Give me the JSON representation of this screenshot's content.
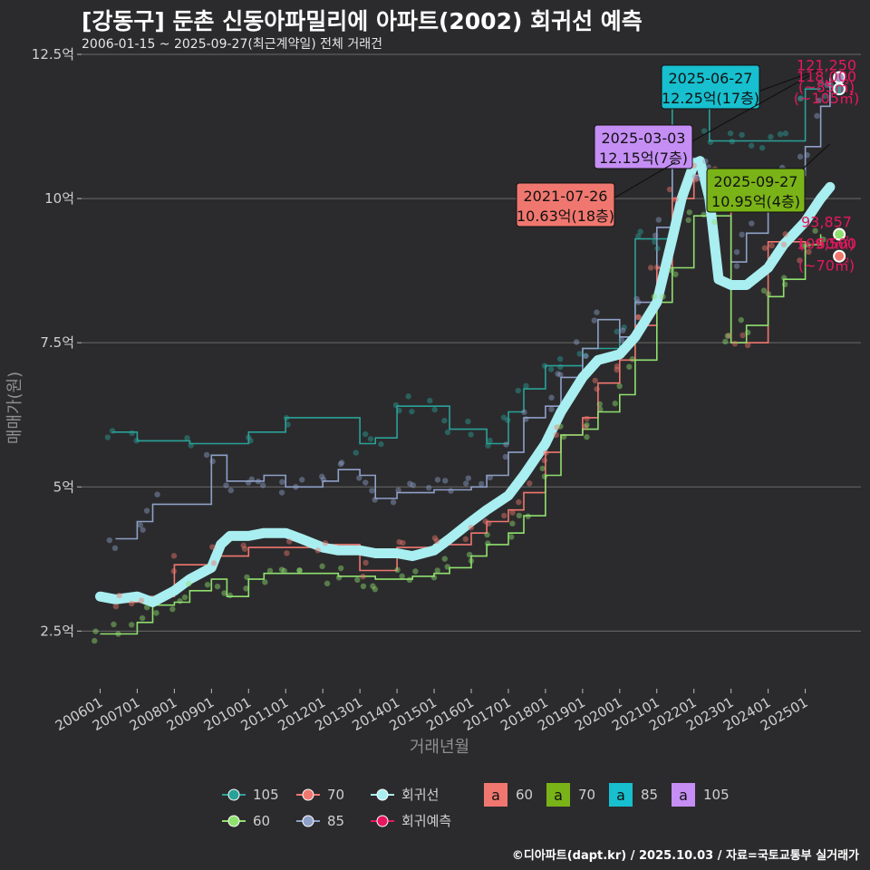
{
  "header": {
    "title": "[강동구] 둔촌 신동아파밀리에 아파트(2002) 회귀선 예측",
    "subtitle": "2006-01-15 ~ 2025-09-27(최근계약일) 전체 거래건"
  },
  "caption": "©디아파트(dapt.kr) / 2025.10.03 / 자료=국토교통부 실거래가",
  "chart_data": {
    "type": "line",
    "xlabel": "거래년월",
    "ylabel": "매매가(원)",
    "ylim": [
      1.5,
      12.5
    ],
    "xlim": [
      "2005-07",
      "2026-07"
    ],
    "y_ticks": [
      {
        "value": 2.5,
        "label": "2.5억"
      },
      {
        "value": 5,
        "label": "5억"
      },
      {
        "value": 7.5,
        "label": "7.5억"
      },
      {
        "value": 10,
        "label": "10억"
      },
      {
        "value": 12.5,
        "label": "12.5억"
      }
    ],
    "x_ticks": [
      "200601",
      "200701",
      "200801",
      "200901",
      "201001",
      "201101",
      "201201",
      "201301",
      "201401",
      "201501",
      "201601",
      "201701",
      "201801",
      "201901",
      "202001",
      "202101",
      "202201",
      "202301",
      "202401",
      "202501"
    ],
    "grid": true,
    "series": [
      {
        "name": "회귀선",
        "color": "#a9eef0",
        "x": [
          "2006-01",
          "2006-06",
          "2007-01",
          "2007-06",
          "2008-01",
          "2008-06",
          "2009-01",
          "2009-04",
          "2009-07",
          "2010-01",
          "2010-06",
          "2011-01",
          "2011-06",
          "2012-01",
          "2012-06",
          "2013-01",
          "2013-06",
          "2014-01",
          "2014-06",
          "2015-01",
          "2015-06",
          "2016-01",
          "2016-06",
          "2017-01",
          "2017-06",
          "2018-01",
          "2018-06",
          "2019-01",
          "2019-06",
          "2020-01",
          "2020-06",
          "2021-01",
          "2021-06",
          "2021-09",
          "2022-01",
          "2022-03",
          "2022-06",
          "2022-09",
          "2023-01",
          "2023-06",
          "2024-01",
          "2024-06",
          "2025-01",
          "2025-06",
          "2025-09"
        ],
        "values": [
          3.1,
          3.05,
          3.1,
          3.0,
          3.2,
          3.4,
          3.6,
          4.0,
          4.15,
          4.15,
          4.2,
          4.2,
          4.1,
          3.95,
          3.9,
          3.9,
          3.85,
          3.85,
          3.8,
          3.9,
          4.1,
          4.4,
          4.6,
          4.85,
          5.2,
          5.75,
          6.3,
          6.9,
          7.2,
          7.3,
          7.6,
          8.2,
          9.3,
          10.0,
          10.6,
          10.65,
          10.0,
          8.6,
          8.5,
          8.5,
          8.8,
          9.2,
          9.6,
          10.0,
          10.2
        ]
      },
      {
        "name": "105",
        "color": "#2aa198",
        "x": [
          "2006-05",
          "2007-01",
          "2008-06",
          "2010-01",
          "2011-01",
          "2013-01",
          "2013-06",
          "2014-01",
          "2014-06",
          "2015-01",
          "2015-06",
          "2016-01",
          "2016-06",
          "2017-01",
          "2017-06",
          "2018-01",
          "2018-06",
          "2019-01",
          "2020-01",
          "2020-06",
          "2021-01",
          "2021-06",
          "2022-01",
          "2022-06",
          "2023-01",
          "2023-06",
          "2024-01",
          "2024-06",
          "2025-01",
          "2025-06"
        ],
        "values": [
          5.95,
          5.8,
          5.75,
          5.95,
          6.2,
          5.75,
          5.85,
          6.4,
          6.4,
          6.4,
          6.0,
          6.0,
          5.75,
          6.3,
          6.7,
          7.1,
          7.1,
          7.4,
          7.6,
          9.3,
          9.3,
          12.0,
          12.0,
          11.0,
          11.0,
          11.0,
          11.0,
          11.0,
          11.9,
          11.9
        ]
      },
      {
        "name": "70",
        "color": "#f0776f",
        "x": [
          "2006-06",
          "2007-01",
          "2008-01",
          "2009-01",
          "2010-01",
          "2011-01",
          "2012-01",
          "2013-01",
          "2014-01",
          "2015-01",
          "2016-01",
          "2016-06",
          "2017-01",
          "2017-06",
          "2018-01",
          "2018-06",
          "2019-01",
          "2019-06",
          "2020-01",
          "2020-06",
          "2021-01",
          "2021-06",
          "2022-01",
          "2022-06",
          "2023-01",
          "2023-06",
          "2024-01",
          "2024-06",
          "2025-01"
        ],
        "values": [
          3.0,
          3.1,
          3.65,
          3.8,
          3.95,
          3.95,
          4.0,
          3.55,
          3.95,
          4.0,
          4.2,
          4.4,
          4.6,
          4.9,
          5.6,
          5.9,
          6.2,
          6.8,
          7.2,
          7.8,
          8.8,
          10.0,
          10.4,
          10.4,
          7.5,
          7.5,
          9.25,
          9.25,
          9.0
        ]
      },
      {
        "name": "60",
        "color": "#90e06e",
        "x": [
          "2006-01",
          "2006-06",
          "2007-01",
          "2007-06",
          "2008-01",
          "2008-06",
          "2009-01",
          "2009-06",
          "2010-01",
          "2010-06",
          "2011-01",
          "2011-06",
          "2012-01",
          "2012-06",
          "2013-01",
          "2013-06",
          "2014-01",
          "2014-06",
          "2015-01",
          "2015-06",
          "2016-01",
          "2016-06",
          "2017-01",
          "2017-06",
          "2018-01",
          "2018-06",
          "2019-01",
          "2019-06",
          "2020-01",
          "2020-06",
          "2021-01",
          "2021-06",
          "2022-01",
          "2022-06",
          "2023-01",
          "2023-06",
          "2024-01",
          "2024-06",
          "2025-01",
          "2025-06"
        ],
        "values": [
          2.45,
          2.45,
          2.65,
          2.95,
          3.0,
          3.2,
          3.4,
          3.1,
          3.4,
          3.5,
          3.5,
          3.5,
          3.5,
          3.45,
          3.45,
          3.4,
          3.4,
          3.45,
          3.5,
          3.6,
          3.8,
          4.0,
          4.2,
          4.5,
          5.2,
          5.9,
          6.0,
          6.3,
          6.6,
          7.2,
          8.2,
          8.8,
          9.7,
          9.7,
          7.5,
          7.8,
          8.3,
          8.6,
          9.2,
          9.38
        ]
      },
      {
        "name": "85",
        "color": "#8fa0c8",
        "x": [
          "2006-06",
          "2007-01",
          "2007-06",
          "2009-01",
          "2009-06",
          "2010-01",
          "2010-06",
          "2011-01",
          "2011-06",
          "2012-01",
          "2012-06",
          "2013-01",
          "2013-06",
          "2014-01",
          "2014-06",
          "2015-01",
          "2015-06",
          "2016-01",
          "2016-06",
          "2017-01",
          "2017-06",
          "2018-01",
          "2018-06",
          "2019-01",
          "2019-06",
          "2020-01",
          "2020-06",
          "2021-01",
          "2021-06",
          "2022-01",
          "2022-06",
          "2023-01",
          "2023-06",
          "2024-01",
          "2024-06",
          "2025-01",
          "2025-06",
          "2025-09"
        ],
        "values": [
          4.1,
          4.4,
          4.7,
          5.55,
          5.1,
          5.1,
          5.2,
          5.0,
          5.0,
          5.1,
          5.3,
          5.2,
          4.8,
          4.9,
          4.9,
          4.95,
          4.95,
          5.0,
          5.2,
          5.6,
          6.2,
          6.4,
          6.9,
          7.4,
          7.9,
          7.6,
          8.2,
          9.5,
          10.7,
          10.5,
          10.5,
          8.9,
          9.4,
          10.0,
          10.4,
          10.9,
          11.6,
          12.1
        ]
      }
    ],
    "end_labels": [
      {
        "lines": [
          "121,250",
          "(~85㎡)"
        ],
        "series": "85"
      },
      {
        "lines": [
          "118,000",
          "(~105㎡)"
        ],
        "series": "105"
      },
      {
        "lines": [
          "109,500",
          "(~70㎡)"
        ],
        "series": "70"
      },
      {
        "lines": [
          "93,857",
          "(~60㎡)"
        ],
        "series": "60"
      }
    ],
    "callouts": [
      {
        "date": "2025-06-27",
        "lines": [
          "2025-06-27",
          "12.25억(17층)"
        ],
        "color": "#17bfcf",
        "point": [
          "2025-06",
          12.25
        ]
      },
      {
        "date": "2025-03-03",
        "lines": [
          "2025-03-03",
          "12.15억(7층)"
        ],
        "color": "#c58ef5",
        "point": [
          "2025-03",
          12.15
        ]
      },
      {
        "date": "2021-07-26",
        "lines": [
          "2021-07-26",
          "10.63억(18층)"
        ],
        "color": "#f0776f",
        "point": [
          "2021-07",
          10.63
        ]
      },
      {
        "date": "2025-09-27",
        "lines": [
          "2025-09-27",
          "10.95억(4층)"
        ],
        "color": "#7ab317",
        "point": [
          "2025-09",
          10.95
        ]
      }
    ],
    "legend": {
      "placement": "bottom",
      "line_items": [
        {
          "label": "105",
          "color": "#2aa198"
        },
        {
          "label": "70",
          "color": "#f0776f"
        },
        {
          "label": "회귀선",
          "color": "#a9eef0"
        },
        {
          "label": "60",
          "color": "#90e06e"
        },
        {
          "label": "85",
          "color": "#8fa0c8"
        },
        {
          "label": "회귀예측",
          "color": "#e8175d"
        }
      ],
      "box_items": [
        {
          "label": "60",
          "color": "#f0776f",
          "glyph": "a"
        },
        {
          "label": "70",
          "color": "#7ab317",
          "glyph": "a"
        },
        {
          "label": "85",
          "color": "#17bfcf",
          "glyph": "a"
        },
        {
          "label": "105",
          "color": "#c58ef5",
          "glyph": "a"
        }
      ]
    }
  }
}
